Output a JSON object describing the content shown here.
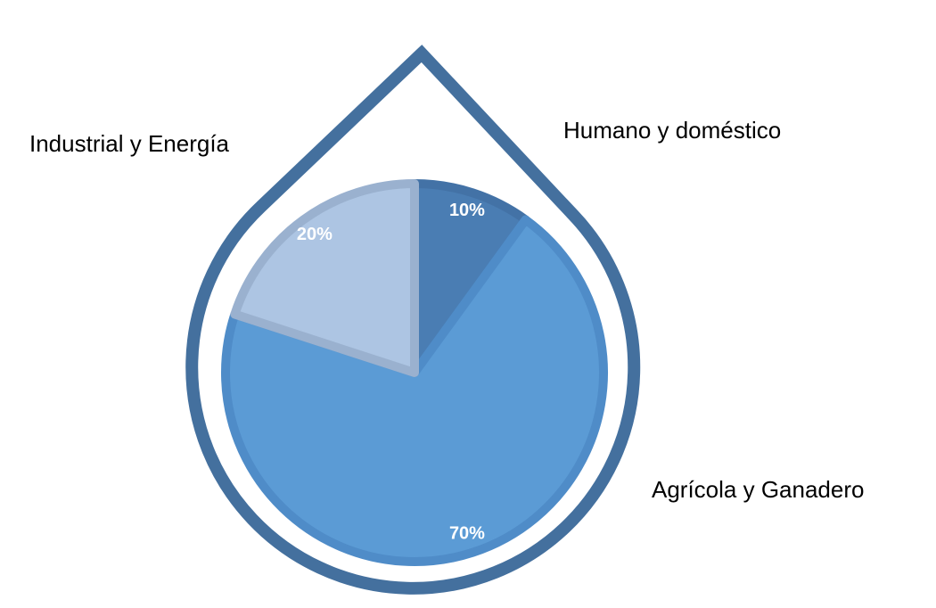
{
  "chart_data": {
    "type": "pie",
    "categories": [
      "Humano y doméstico",
      "Agrícola y Ganadero",
      "Industrial y Energía"
    ],
    "values": [
      10,
      70,
      20
    ],
    "value_labels": [
      "10%",
      "70%",
      "20%"
    ],
    "colors": [
      "#4a7db3",
      "#5b9bd5",
      "#adc5e3"
    ]
  }
}
